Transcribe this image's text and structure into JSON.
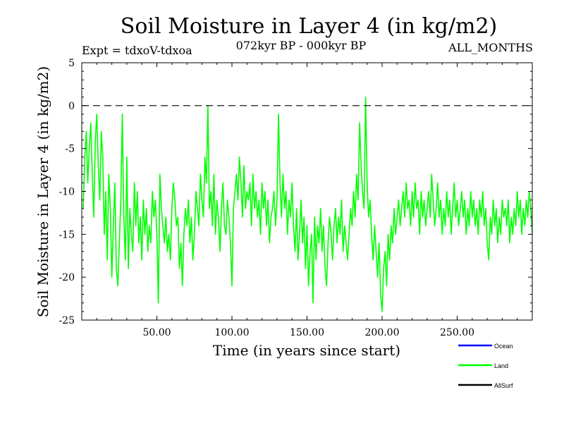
{
  "chart_data": {
    "type": "line",
    "title": "Soil Moisture in Layer 4 (in kg/m2)",
    "subtitle_left": "Expt = tdxoV-tdxoa",
    "subtitle_center": "072kyr BP - 000kyr BP",
    "subtitle_right": "ALL_MONTHS",
    "xlabel": "Time (in years since start)",
    "ylabel": "Soil Moisture in Layer 4 (in kg/m2)",
    "xlim": [
      0,
      300
    ],
    "ylim": [
      -25,
      5
    ],
    "x_ticks": [
      50,
      100,
      150,
      200,
      250
    ],
    "x_tick_labels": [
      "50.00",
      "100.00",
      "150.00",
      "200.00",
      "250.00"
    ],
    "y_ticks": [
      5,
      0,
      -5,
      -10,
      -15,
      -20,
      -25
    ],
    "y_tick_labels": [
      "5",
      "0",
      "-5",
      "-10",
      "-15",
      "-20",
      "-25"
    ],
    "zero_line": true,
    "grid": false,
    "legend_position": "bottom-right",
    "series": [
      {
        "name": "Ocean",
        "color": "#0000ff",
        "values": []
      },
      {
        "name": "Land",
        "color": "#00ff00",
        "x_start": 1,
        "x_step": 1,
        "values": [
          -12,
          -6,
          -3,
          -9,
          -5,
          -2,
          -8,
          -13,
          -4,
          -1,
          -7,
          -11,
          -3,
          -6,
          -15,
          -10,
          -18,
          -8,
          -12,
          -20,
          -14,
          -9,
          -19,
          -21,
          -16,
          -11,
          -1,
          -13,
          -18,
          -6,
          -19,
          -12,
          -15,
          -17,
          -9,
          -14,
          -10,
          -16,
          -13,
          -18,
          -11,
          -15,
          -12,
          -17,
          -14,
          -16,
          -10,
          -13,
          -11,
          -15,
          -23,
          -8,
          -12,
          -14,
          -16,
          -13,
          -17,
          -15,
          -18,
          -12,
          -9,
          -11,
          -14,
          -13,
          -19,
          -16,
          -21,
          -15,
          -12,
          -14,
          -11,
          -16,
          -13,
          -18,
          -15,
          -10,
          -12,
          -14,
          -8,
          -11,
          -13,
          -6,
          -9,
          0,
          -12,
          -10,
          -14,
          -8,
          -15,
          -11,
          -13,
          -17,
          -12,
          -9,
          -14,
          -15,
          -11,
          -13,
          -16,
          -21,
          -12,
          -10,
          -8,
          -11,
          -6,
          -9,
          -13,
          -7,
          -12,
          -10,
          -11,
          -9,
          -14,
          -8,
          -12,
          -10,
          -13,
          -11,
          -15,
          -9,
          -12,
          -10,
          -14,
          -11,
          -16,
          -13,
          -12,
          -10,
          -14,
          -11,
          -1,
          -9,
          -13,
          -8,
          -12,
          -10,
          -15,
          -11,
          -13,
          -9,
          -14,
          -17,
          -12,
          -18,
          -15,
          -11,
          -16,
          -13,
          -19,
          -14,
          -21,
          -17,
          -15,
          -23,
          -13,
          -18,
          -14,
          -16,
          -12,
          -17,
          -14,
          -19,
          -21,
          -16,
          -13,
          -15,
          -18,
          -14,
          -12,
          -16,
          -13,
          -15,
          -11,
          -17,
          -14,
          -16,
          -18,
          -15,
          -12,
          -14,
          -10,
          -13,
          -8,
          -11,
          -2,
          -7,
          -10,
          -12,
          1,
          -9,
          -13,
          -11,
          -15,
          -18,
          -14,
          -17,
          -20,
          -16,
          -22,
          -24,
          -19,
          -17,
          -21,
          -15,
          -18,
          -14,
          -16,
          -12,
          -15,
          -13,
          -11,
          -14,
          -12,
          -10,
          -13,
          -9,
          -12,
          -11,
          -14,
          -10,
          -13,
          -9,
          -12,
          -11,
          -15,
          -10,
          -13,
          -11,
          -14,
          -12,
          -10,
          -13,
          -8,
          -11,
          -14,
          -12,
          -9,
          -13,
          -11,
          -15,
          -12,
          -14,
          -10,
          -13,
          -11,
          -15,
          -12,
          -9,
          -13,
          -11,
          -14,
          -12,
          -10,
          -13,
          -11,
          -15,
          -12,
          -14,
          -10,
          -13,
          -11,
          -14,
          -12,
          -15,
          -11,
          -13,
          -10,
          -14,
          -12,
          -16,
          -18,
          -13,
          -15,
          -11,
          -14,
          -12,
          -16,
          -13,
          -15,
          -11,
          -13,
          -12,
          -14,
          -11,
          -16,
          -13,
          -15,
          -12,
          -14,
          -10,
          -13,
          -11,
          -15,
          -12,
          -14,
          -11,
          -13,
          -10,
          -12,
          -15
        ]
      },
      {
        "name": "AllSurf",
        "color": "#000000",
        "values": []
      }
    ]
  }
}
